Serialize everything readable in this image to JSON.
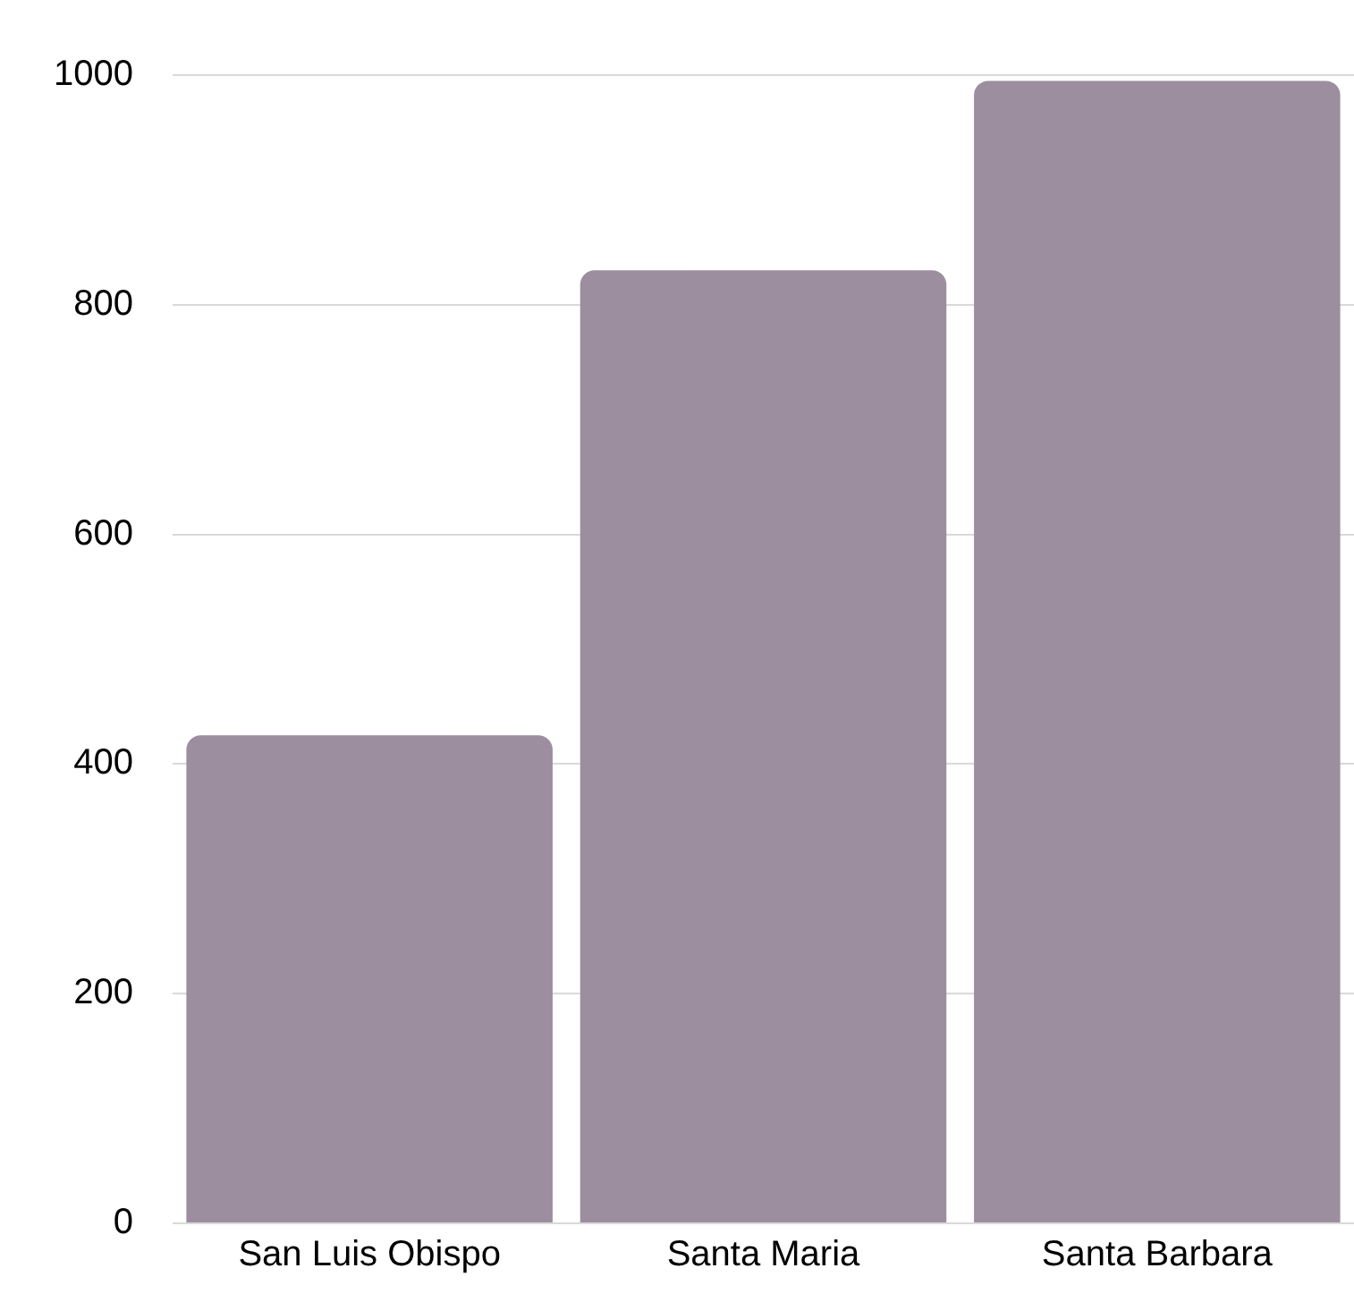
{
  "chart_data": {
    "type": "bar",
    "categories": [
      "San Luis Obispo",
      "Santa Maria",
      "Santa Barbara"
    ],
    "values": [
      425,
      830,
      995
    ],
    "color": "#9c8e9e",
    "ylim": [
      0,
      1000
    ],
    "yticks": [
      0,
      200,
      400,
      600,
      800,
      1000
    ],
    "grid": "y"
  }
}
